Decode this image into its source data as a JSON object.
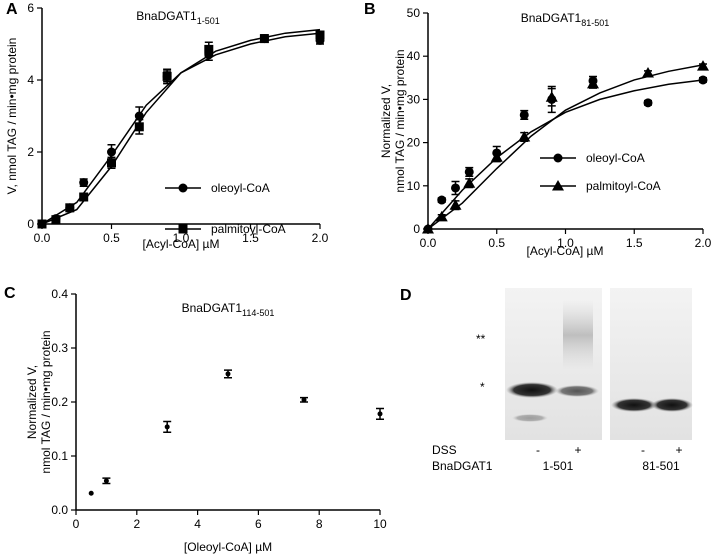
{
  "chart_data": [
    {
      "type": "scatter",
      "panel": "A",
      "title": "BnaDGAT1",
      "title_sub": "1-501",
      "xlabel": "[Acyl-CoA] µM",
      "ylabel": [
        "V, nmol TAG / min•mg protein"
      ],
      "xlim": [
        0,
        2
      ],
      "ylim": [
        0,
        6
      ],
      "xticks": [
        {
          "value": 0,
          "label": "0.0"
        },
        {
          "value": 0.5,
          "label": "0.5"
        },
        {
          "value": 1,
          "label": "1.0"
        },
        {
          "value": 1.5,
          "label": "1.5"
        },
        {
          "value": 2,
          "label": "2.0"
        }
      ],
      "yticks": [
        0,
        2,
        4,
        6
      ],
      "x": [
        0,
        0.1,
        0.2,
        0.3,
        0.5,
        0.7,
        0.9,
        1.2,
        1.6,
        2.0
      ],
      "fit_x": [
        0,
        0.25,
        0.5,
        0.75,
        1,
        1.25,
        1.5,
        1.75,
        2
      ],
      "series": [
        {
          "name": "oleoyl-CoA",
          "marker": "circle",
          "color": "#000",
          "values": [
            0,
            0.15,
            0.45,
            1.15,
            2.0,
            3.0,
            4.1,
            4.7,
            5.15,
            5.1
          ],
          "errors": [
            0,
            0.05,
            0.1,
            0.1,
            0.2,
            0.25,
            0.2,
            0.15,
            0.1,
            0.1
          ],
          "fit": [
            0,
            0.6,
            1.9,
            3.3,
            4.2,
            4.7,
            5.0,
            5.2,
            5.3
          ]
        },
        {
          "name": "palmitoyl-CoA",
          "marker": "square",
          "color": "#000",
          "values": [
            0,
            0.12,
            0.45,
            0.75,
            1.7,
            2.7,
            4.1,
            4.85,
            5.15,
            5.25
          ],
          "errors": [
            0,
            0.05,
            0.1,
            0.1,
            0.15,
            0.2,
            0.15,
            0.2,
            0.1,
            0.1
          ],
          "fit": [
            0,
            0.4,
            1.6,
            3.1,
            4.2,
            4.8,
            5.1,
            5.3,
            5.4
          ]
        }
      ]
    },
    {
      "type": "scatter",
      "panel": "B",
      "title": "BnaDGAT1",
      "title_sub": "81-501",
      "xlabel": "[Acyl-CoA] µM",
      "ylabel": [
        "Normalized V,",
        "nmol TAG / min•mg protein"
      ],
      "xlim": [
        0,
        2
      ],
      "ylim": [
        0,
        50
      ],
      "xticks": [
        {
          "value": 0,
          "label": "0.0"
        },
        {
          "value": 0.5,
          "label": "0.5"
        },
        {
          "value": 1,
          "label": "1.0"
        },
        {
          "value": 1.5,
          "label": "1.5"
        },
        {
          "value": 2,
          "label": "2.0"
        }
      ],
      "yticks": [
        0,
        10,
        20,
        30,
        40,
        50
      ],
      "x": [
        0,
        0.1,
        0.2,
        0.3,
        0.5,
        0.7,
        0.9,
        1.2,
        1.6,
        2.0
      ],
      "fit_x": [
        0,
        0.25,
        0.5,
        0.75,
        1,
        1.25,
        1.5,
        1.75,
        2
      ],
      "series": [
        {
          "name": "oleoyl-CoA",
          "marker": "circle",
          "color": "#000",
          "values": [
            0,
            6.7,
            9.5,
            13.2,
            17.6,
            26.4,
            30,
            34.3,
            29.2,
            34.5
          ],
          "errors": [
            0,
            0.5,
            1.5,
            1,
            1.5,
            1,
            3,
            1,
            0.5,
            0.5
          ],
          "fit": [
            0,
            9,
            16.5,
            22.5,
            27,
            30,
            32,
            33.5,
            34.5
          ]
        },
        {
          "name": "palmitoyl-CoA",
          "marker": "triangle",
          "color": "#000",
          "values": [
            0,
            2.8,
            5.5,
            10.6,
            16.6,
            21.3,
            30.5,
            33.6,
            36.1,
            37.7
          ],
          "errors": [
            0,
            0.5,
            1,
            1,
            1,
            1,
            2,
            1,
            0.5,
            0.5
          ],
          "fit": [
            0,
            6,
            14,
            21.5,
            27.5,
            31.5,
            34.5,
            36.5,
            38
          ]
        }
      ]
    },
    {
      "type": "scatter",
      "panel": "C",
      "title": "BnaDGAT1",
      "title_sub": "114-501",
      "xlabel": "[Oleoyl-CoA] µM",
      "ylabel": [
        "Normalized V,",
        "nmol TAG / min•mg protein"
      ],
      "xlim": [
        0,
        10
      ],
      "ylim": [
        0,
        0.4
      ],
      "xticks": [
        0,
        2,
        4,
        6,
        8,
        10
      ],
      "yticks": [
        {
          "value": 0,
          "label": "0.0"
        },
        0.1,
        0.2,
        0.3,
        0.4
      ],
      "x": [
        0.5,
        1,
        3,
        5,
        7.5,
        10
      ],
      "series": [
        {
          "marker": "circle",
          "color": "#000",
          "values": [
            0.031,
            0.054,
            0.154,
            0.252,
            0.204,
            0.178
          ],
          "errors": [
            0,
            0.005,
            0.01,
            0.007,
            0.004,
            0.01
          ]
        }
      ]
    }
  ],
  "gel": {
    "panel": "D",
    "band_labels": [
      "**",
      "*"
    ],
    "row_labels": [
      "DSS",
      "BnaDGAT1"
    ],
    "dss": [
      "-",
      "+",
      "-",
      "+"
    ],
    "constructs": [
      "1-501",
      "81-501"
    ]
  }
}
